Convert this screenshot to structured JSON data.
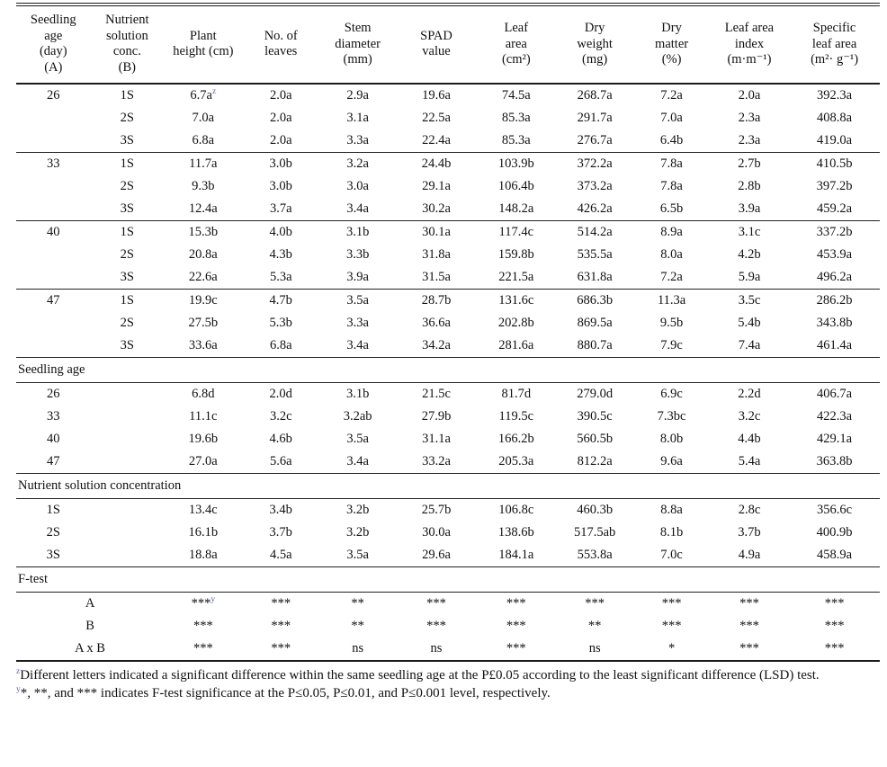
{
  "colors": {
    "marker": "#5b6db5",
    "rule": "#1a1a1a",
    "text": "#111111"
  },
  "table": {
    "headers": [
      [
        "Seedling",
        "age",
        "(day)",
        "(A)"
      ],
      [
        "Nutrient",
        "solution",
        "conc.",
        "(B)"
      ],
      [
        "Plant",
        "height (cm)"
      ],
      [
        "No. of",
        "leaves"
      ],
      [
        "Stem",
        "diameter",
        "(mm)"
      ],
      [
        "SPAD",
        "value"
      ],
      [
        "Leaf",
        "area",
        "(cm²)"
      ],
      [
        "Dry",
        "weight",
        "(mg)"
      ],
      [
        "Dry",
        "matter",
        "(%)"
      ],
      [
        "Leaf area",
        "index",
        "(m·m⁻¹)"
      ],
      [
        "Specific",
        "leaf area",
        "(m²· g⁻¹)"
      ]
    ],
    "rows": [
      {
        "t": "g",
        "rule": false,
        "c1": "26",
        "c2": "1S",
        "v": [
          "6.7a^z",
          "2.0a",
          "2.9a",
          "19.6a",
          "74.5a",
          "268.7a",
          "7.2a",
          "2.0a",
          "392.3a"
        ]
      },
      {
        "t": "g",
        "rule": false,
        "c1": "",
        "c2": "2S",
        "v": [
          "7.0a",
          "2.0a",
          "3.1a",
          "22.5a",
          "85.3a",
          "291.7a",
          "7.0a",
          "2.3a",
          "408.8a"
        ]
      },
      {
        "t": "g",
        "rule": false,
        "c1": "",
        "c2": "3S",
        "v": [
          "6.8a",
          "2.0a",
          "3.3a",
          "22.4a",
          "85.3a",
          "276.7a",
          "6.4b",
          "2.3a",
          "419.0a"
        ]
      },
      {
        "t": "g",
        "rule": true,
        "c1": "33",
        "c2": "1S",
        "v": [
          "11.7a",
          "3.0b",
          "3.2a",
          "24.4b",
          "103.9b",
          "372.2a",
          "7.8a",
          "2.7b",
          "410.5b"
        ]
      },
      {
        "t": "g",
        "rule": false,
        "c1": "",
        "c2": "2S",
        "v": [
          "9.3b",
          "3.0b",
          "3.0a",
          "29.1a",
          "106.4b",
          "373.2a",
          "7.8a",
          "2.8b",
          "397.2b"
        ]
      },
      {
        "t": "g",
        "rule": false,
        "c1": "",
        "c2": "3S",
        "v": [
          "12.4a",
          "3.7a",
          "3.4a",
          "30.2a",
          "148.2a",
          "426.2a",
          "6.5b",
          "3.9a",
          "459.2a"
        ]
      },
      {
        "t": "g",
        "rule": true,
        "c1": "40",
        "c2": "1S",
        "v": [
          "15.3b",
          "4.0b",
          "3.1b",
          "30.1a",
          "117.4c",
          "514.2a",
          "8.9a",
          "3.1c",
          "337.2b"
        ]
      },
      {
        "t": "g",
        "rule": false,
        "c1": "",
        "c2": "2S",
        "v": [
          "20.8a",
          "4.3b",
          "3.3b",
          "31.8a",
          "159.8b",
          "535.5a",
          "8.0a",
          "4.2b",
          "453.9a"
        ]
      },
      {
        "t": "g",
        "rule": false,
        "c1": "",
        "c2": "3S",
        "v": [
          "22.6a",
          "5.3a",
          "3.9a",
          "31.5a",
          "221.5a",
          "631.8a",
          "7.2a",
          "5.9a",
          "496.2a"
        ]
      },
      {
        "t": "g",
        "rule": true,
        "c1": "47",
        "c2": "1S",
        "v": [
          "19.9c",
          "4.7b",
          "3.5a",
          "28.7b",
          "131.6c",
          "686.3b",
          "11.3a",
          "3.5c",
          "286.2b"
        ]
      },
      {
        "t": "g",
        "rule": false,
        "c1": "",
        "c2": "2S",
        "v": [
          "27.5b",
          "5.3b",
          "3.3a",
          "36.6a",
          "202.8b",
          "869.5a",
          "9.5b",
          "5.4b",
          "343.8b"
        ]
      },
      {
        "t": "g",
        "rule": false,
        "c1": "",
        "c2": "3S",
        "v": [
          "33.6a",
          "6.8a",
          "3.4a",
          "34.2a",
          "281.6a",
          "880.7a",
          "7.9c",
          "7.4a",
          "461.4a"
        ]
      },
      {
        "t": "s",
        "title": "Seedling age"
      },
      {
        "t": "m",
        "c1": "26",
        "v": [
          "6.8d",
          "2.0d",
          "3.1b",
          "21.5c",
          "81.7d",
          "279.0d",
          "6.9c",
          "2.2d",
          "406.7a"
        ]
      },
      {
        "t": "m",
        "c1": "33",
        "v": [
          "11.1c",
          "3.2c",
          "3.2ab",
          "27.9b",
          "119.5c",
          "390.5c",
          "7.3bc",
          "3.2c",
          "422.3a"
        ]
      },
      {
        "t": "m",
        "c1": "40",
        "v": [
          "19.6b",
          "4.6b",
          "3.5a",
          "31.1a",
          "166.2b",
          "560.5b",
          "8.0b",
          "4.4b",
          "429.1a"
        ]
      },
      {
        "t": "m",
        "c1": "47",
        "v": [
          "27.0a",
          "5.6a",
          "3.4a",
          "33.2a",
          "205.3a",
          "812.2a",
          "9.6a",
          "5.4a",
          "363.8b"
        ]
      },
      {
        "t": "s",
        "title": "Nutrient solution concentration"
      },
      {
        "t": "m",
        "c1": "1S",
        "v": [
          "13.4c",
          "3.4b",
          "3.2b",
          "25.7b",
          "106.8c",
          "460.3b",
          "8.8a",
          "2.8c",
          "356.6c"
        ]
      },
      {
        "t": "m",
        "c1": "2S",
        "v": [
          "16.1b",
          "3.7b",
          "3.2b",
          "30.0a",
          "138.6b",
          "517.5ab",
          "8.1b",
          "3.7b",
          "400.9b"
        ]
      },
      {
        "t": "m",
        "c1": "3S",
        "v": [
          "18.8a",
          "4.5a",
          "3.5a",
          "29.6a",
          "184.1a",
          "553.8a",
          "7.0c",
          "4.9a",
          "458.9a"
        ]
      },
      {
        "t": "s",
        "title": "F-test"
      },
      {
        "t": "f",
        "label": "A",
        "v": [
          "***^y",
          "***",
          "**",
          "***",
          "***",
          "***",
          "***",
          "***",
          "***"
        ]
      },
      {
        "t": "f",
        "label": "B",
        "v": [
          "***",
          "***",
          "**",
          "***",
          "***",
          "**",
          "***",
          "***",
          "***"
        ]
      },
      {
        "t": "f",
        "label": "A x B",
        "v": [
          "***",
          "***",
          "ns",
          "ns",
          "***",
          "ns",
          "*",
          "***",
          "***"
        ]
      }
    ]
  },
  "footnotes": [
    "^zDifferent letters indicated a significant difference within the same seedling age at the P£0.05 according to the least significant difference (LSD) test.",
    "^y*, **, and *** indicates F-test significance at the P≤0.05, P≤0.01, and P≤0.001 level, respectively."
  ]
}
